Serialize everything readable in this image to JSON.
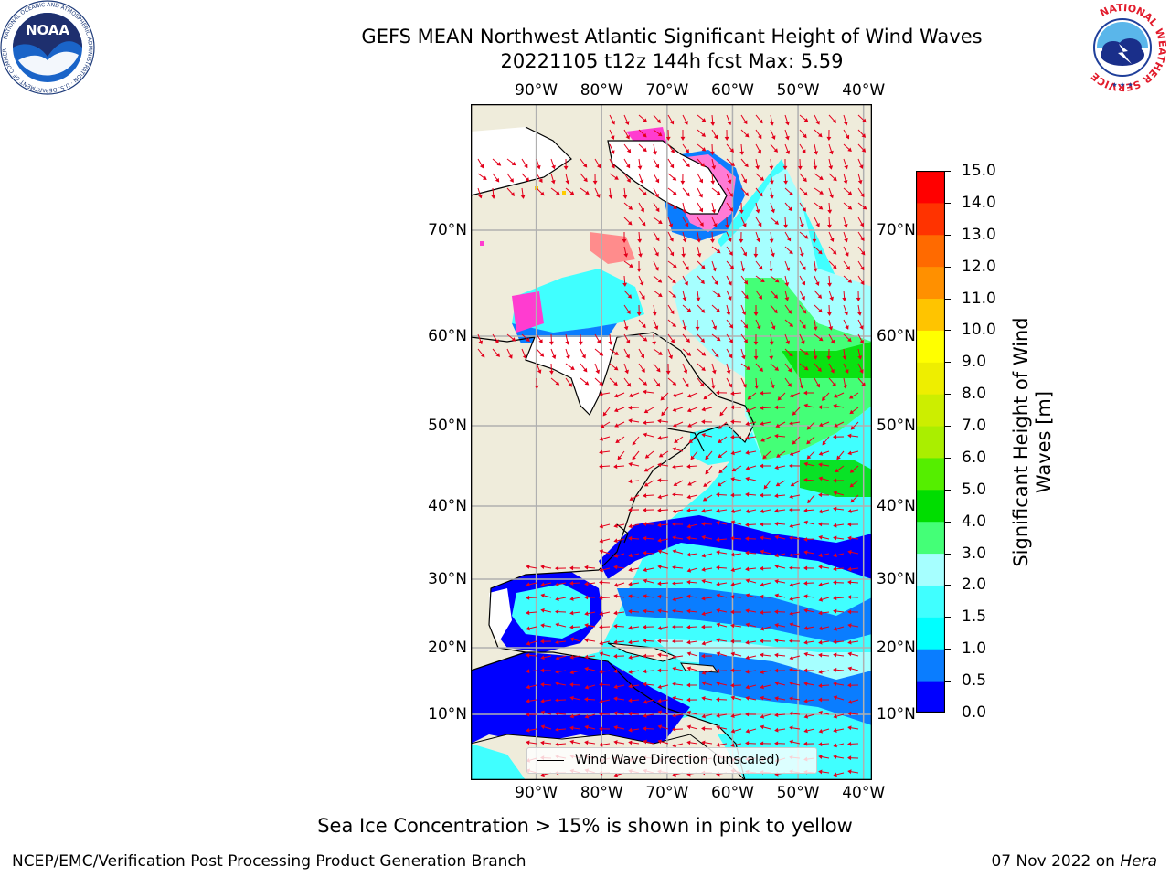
{
  "header": {
    "title_line1": "GEFS MEAN Northwest Atlantic Significant Height of Wind Waves",
    "title_line2": "20221105 t12z 144h fcst   Max: 5.59"
  },
  "logos": {
    "noaa_text": "NOAA",
    "noaa_ring_text": "NATIONAL OCEANIC AND ATMOSPHERIC ADMINISTRATION · U.S. DEPARTMENT OF COMMERCE",
    "nws_ring_text": "NATIONAL WEATHER SERVICE"
  },
  "map": {
    "lon_labels": [
      "90°W",
      "80°W",
      "70°W",
      "60°W",
      "50°W",
      "40°W"
    ],
    "lon_values": [
      -90,
      -80,
      -70,
      -60,
      -50,
      -40
    ],
    "lat_labels": [
      "70°N",
      "60°N",
      "50°N",
      "40°N",
      "30°N",
      "20°N",
      "10°N"
    ],
    "lat_values": [
      70,
      60,
      50,
      40,
      30,
      20,
      10
    ],
    "legend_label": "Wind Wave Direction (unscaled)",
    "colors": {
      "land": "#efecdb",
      "grid": "#b0b0b0",
      "arrows": "#e3001b",
      "coast": "#000000"
    }
  },
  "colorbar": {
    "label": "Significant Height of Wind Waves [m]",
    "ticks": [
      "15.0",
      "14.0",
      "13.0",
      "12.0",
      "11.0",
      "10.0",
      "9.0",
      "8.0",
      "7.0",
      "6.0",
      "5.0",
      "4.0",
      "3.0",
      "2.0",
      "1.5",
      "1.0",
      "0.5",
      "0.0"
    ],
    "colors": [
      "#0000ff",
      "#0a7dff",
      "#00ffff",
      "#40ffff",
      "#a6ffff",
      "#44ff77",
      "#00dd00",
      "#55ee00",
      "#aaee00",
      "#ccee00",
      "#eeee00",
      "#ffff00",
      "#ffc400",
      "#ff9000",
      "#ff6a00",
      "#ff3300",
      "#ff0000"
    ]
  },
  "footer": {
    "note": "Sea Ice Concentration > 15% is shown in pink to yellow",
    "credit_left": "NCEP/EMC/Verification Post Processing Product Generation Branch",
    "date": "07 Nov 2022 on ",
    "machine": "Hera"
  }
}
